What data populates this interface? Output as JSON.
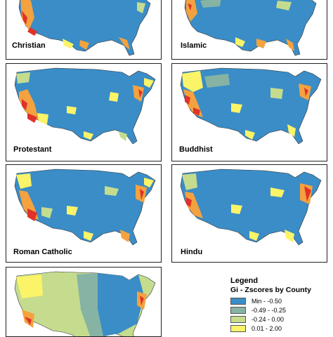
{
  "panels": [
    {
      "label": "Christian"
    },
    {
      "label": "Islamic"
    },
    {
      "label": "Protestant"
    },
    {
      "label": "Buddhist"
    },
    {
      "label": "Roman Catholic"
    },
    {
      "label": "Hindu"
    },
    {
      "label": ""
    }
  ],
  "legend": {
    "title": "Legend",
    "subtitle": "Gi - Zscores by County",
    "items": [
      {
        "label": "Min - -0.50",
        "color": "#3a8dc7"
      },
      {
        "label": "-0.49 - -0.25",
        "color": "#86b3a3"
      },
      {
        "label": "-0.24 - 0.00",
        "color": "#c5dc8e"
      },
      {
        "label": "0.01 - 2.00",
        "color": "#fbf368"
      }
    ]
  },
  "colors": {
    "blue": "#3a8dc7",
    "teal": "#86b3a3",
    "lightgreen": "#c5dc8e",
    "yellow": "#fbf368",
    "orange": "#f4a23f",
    "red": "#e0322a"
  }
}
